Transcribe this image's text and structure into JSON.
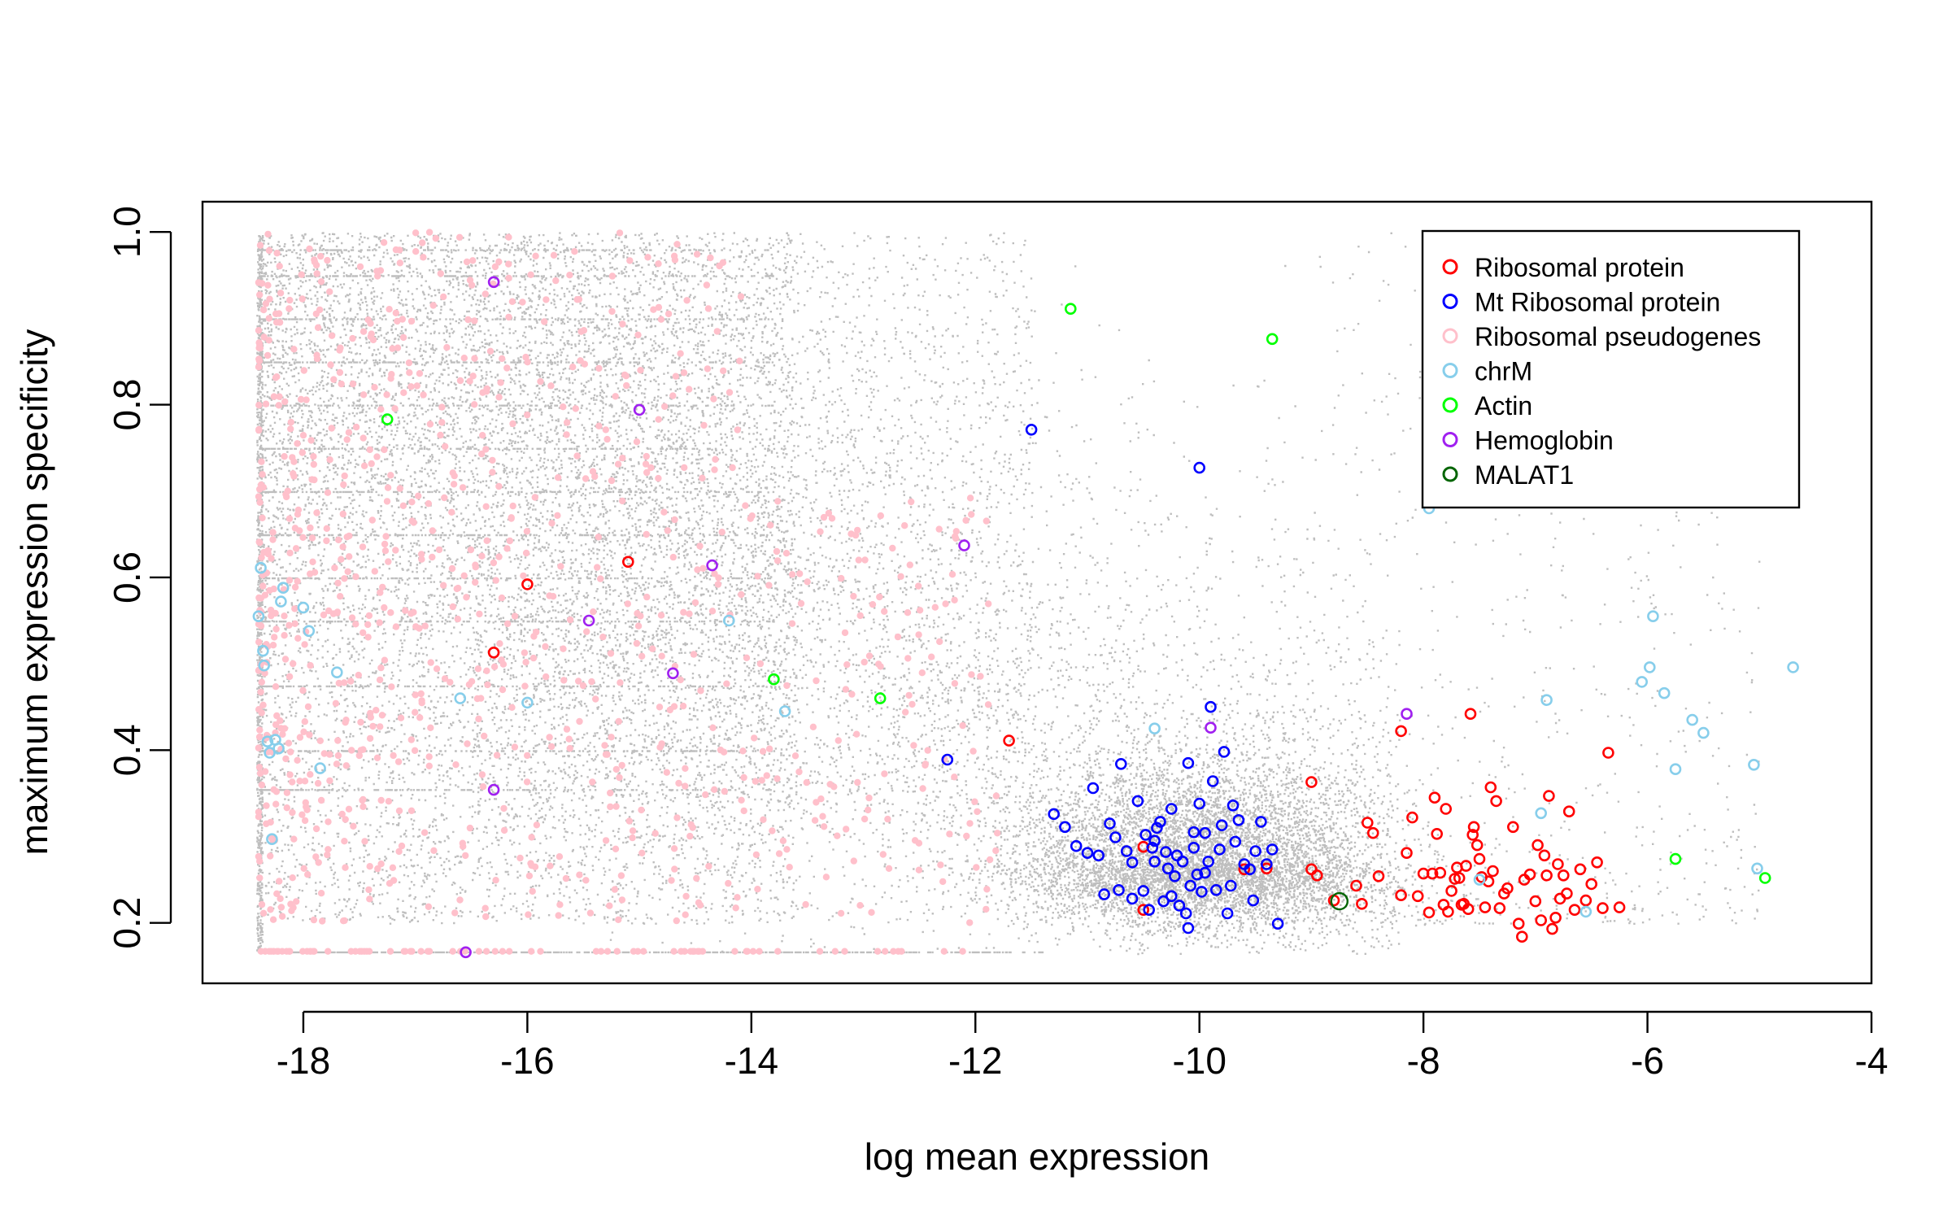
{
  "chart_data": {
    "type": "scatter",
    "title": "",
    "xlabel": "log mean expression",
    "ylabel": "maximum expression specificity",
    "xlim": [
      -18.9,
      -4.0
    ],
    "ylim": [
      0.13,
      1.035
    ],
    "xticks": [
      -18,
      -16,
      -14,
      -12,
      -10,
      -8,
      -6,
      -4
    ],
    "xtick_labels": [
      "-18",
      "-16",
      "-14",
      "-12",
      "-10",
      "-8",
      "-6",
      "-4"
    ],
    "yticks": [
      0.2,
      0.4,
      0.6,
      0.8,
      1.0
    ],
    "ytick_labels": [
      "0.2",
      "0.4",
      "0.6",
      "0.8",
      "1.0"
    ],
    "legend_position": "top-right",
    "background_series": {
      "name": "All genes",
      "color": "#bebebe",
      "note": "approx. 20000 genes, dense cloud; floor at 0.167, heavy band near x=-18.4"
    },
    "series": [
      {
        "name": "Ribosomal protein",
        "color": "#ff0000",
        "points": [
          [
            -16.3,
            0.513
          ],
          [
            -16.0,
            0.592
          ],
          [
            -15.1,
            0.618
          ],
          [
            -11.7,
            0.411
          ],
          [
            -10.5,
            0.288
          ],
          [
            -10.5,
            0.215
          ],
          [
            -9.6,
            0.262
          ],
          [
            -9.4,
            0.263
          ],
          [
            -9.0,
            0.363
          ],
          [
            -9.0,
            0.262
          ],
          [
            -8.95,
            0.255
          ],
          [
            -8.8,
            0.226
          ],
          [
            -8.6,
            0.243
          ],
          [
            -8.55,
            0.222
          ],
          [
            -8.5,
            0.316
          ],
          [
            -8.45,
            0.304
          ],
          [
            -8.4,
            0.254
          ],
          [
            -8.2,
            0.232
          ],
          [
            -8.2,
            0.422
          ],
          [
            -8.15,
            0.281
          ],
          [
            -8.1,
            0.322
          ],
          [
            -8.05,
            0.231
          ],
          [
            -8.0,
            0.257
          ],
          [
            -7.95,
            0.212
          ],
          [
            -7.92,
            0.257
          ],
          [
            -7.9,
            0.345
          ],
          [
            -7.88,
            0.303
          ],
          [
            -7.85,
            0.258
          ],
          [
            -7.82,
            0.221
          ],
          [
            -7.8,
            0.332
          ],
          [
            -7.78,
            0.213
          ],
          [
            -7.75,
            0.237
          ],
          [
            -7.72,
            0.251
          ],
          [
            -7.7,
            0.264
          ],
          [
            -7.68,
            0.252
          ],
          [
            -7.66,
            0.221
          ],
          [
            -7.64,
            0.222
          ],
          [
            -7.62,
            0.266
          ],
          [
            -7.6,
            0.216
          ],
          [
            -7.58,
            0.442
          ],
          [
            -7.56,
            0.302
          ],
          [
            -7.55,
            0.311
          ],
          [
            -7.52,
            0.29
          ],
          [
            -7.5,
            0.274
          ],
          [
            -7.48,
            0.253
          ],
          [
            -7.45,
            0.218
          ],
          [
            -7.42,
            0.248
          ],
          [
            -7.4,
            0.357
          ],
          [
            -7.38,
            0.26
          ],
          [
            -7.35,
            0.341
          ],
          [
            -7.32,
            0.217
          ],
          [
            -7.28,
            0.234
          ],
          [
            -7.25,
            0.24
          ],
          [
            -7.2,
            0.311
          ],
          [
            -7.15,
            0.199
          ],
          [
            -7.12,
            0.184
          ],
          [
            -7.1,
            0.25
          ],
          [
            -7.05,
            0.256
          ],
          [
            -7.0,
            0.225
          ],
          [
            -6.98,
            0.29
          ],
          [
            -6.95,
            0.203
          ],
          [
            -6.92,
            0.278
          ],
          [
            -6.9,
            0.255
          ],
          [
            -6.88,
            0.347
          ],
          [
            -6.85,
            0.193
          ],
          [
            -6.82,
            0.206
          ],
          [
            -6.8,
            0.268
          ],
          [
            -6.78,
            0.228
          ],
          [
            -6.75,
            0.255
          ],
          [
            -6.72,
            0.234
          ],
          [
            -6.7,
            0.329
          ],
          [
            -6.65,
            0.215
          ],
          [
            -6.6,
            0.262
          ],
          [
            -6.55,
            0.226
          ],
          [
            -6.5,
            0.245
          ],
          [
            -6.45,
            0.27
          ],
          [
            -6.4,
            0.217
          ],
          [
            -6.35,
            0.397
          ],
          [
            -6.25,
            0.218
          ]
        ]
      },
      {
        "name": "Mt Ribosomal protein",
        "color": "#0000ff",
        "points": [
          [
            -12.25,
            0.389
          ],
          [
            -11.5,
            0.771
          ],
          [
            -11.3,
            0.326
          ],
          [
            -11.2,
            0.311
          ],
          [
            -11.1,
            0.289
          ],
          [
            -11.0,
            0.281
          ],
          [
            -10.95,
            0.356
          ],
          [
            -10.9,
            0.278
          ],
          [
            -10.85,
            0.233
          ],
          [
            -10.8,
            0.315
          ],
          [
            -10.75,
            0.299
          ],
          [
            -10.72,
            0.238
          ],
          [
            -10.7,
            0.384
          ],
          [
            -10.65,
            0.283
          ],
          [
            -10.6,
            0.228
          ],
          [
            -10.55,
            0.341
          ],
          [
            -10.5,
            0.237
          ],
          [
            -10.48,
            0.302
          ],
          [
            -10.45,
            0.215
          ],
          [
            -10.42,
            0.287
          ],
          [
            -10.4,
            0.271
          ],
          [
            -10.38,
            0.31
          ],
          [
            -10.35,
            0.317
          ],
          [
            -10.32,
            0.225
          ],
          [
            -10.3,
            0.282
          ],
          [
            -10.28,
            0.263
          ],
          [
            -10.25,
            0.332
          ],
          [
            -10.22,
            0.254
          ],
          [
            -10.2,
            0.278
          ],
          [
            -10.18,
            0.22
          ],
          [
            -10.15,
            0.271
          ],
          [
            -10.12,
            0.211
          ],
          [
            -10.1,
            0.385
          ],
          [
            -10.08,
            0.243
          ],
          [
            -10.05,
            0.287
          ],
          [
            -10.02,
            0.256
          ],
          [
            -10.0,
            0.338
          ],
          [
            -10.0,
            0.727
          ],
          [
            -9.98,
            0.236
          ],
          [
            -9.95,
            0.304
          ],
          [
            -9.92,
            0.271
          ],
          [
            -9.9,
            0.45
          ],
          [
            -9.88,
            0.364
          ],
          [
            -9.85,
            0.238
          ],
          [
            -9.82,
            0.285
          ],
          [
            -9.8,
            0.313
          ],
          [
            -9.78,
            0.398
          ],
          [
            -9.75,
            0.211
          ],
          [
            -9.72,
            0.243
          ],
          [
            -9.7,
            0.336
          ],
          [
            -9.68,
            0.294
          ],
          [
            -9.65,
            0.319
          ],
          [
            -9.6,
            0.268
          ],
          [
            -9.55,
            0.262
          ],
          [
            -9.52,
            0.226
          ],
          [
            -9.5,
            0.283
          ],
          [
            -9.45,
            0.317
          ],
          [
            -9.4,
            0.268
          ],
          [
            -9.35,
            0.285
          ],
          [
            -9.3,
            0.199
          ],
          [
            -10.1,
            0.194
          ],
          [
            -10.4,
            0.295
          ],
          [
            -10.6,
            0.27
          ],
          [
            -10.25,
            0.231
          ],
          [
            -9.95,
            0.258
          ],
          [
            -10.05,
            0.305
          ]
        ]
      },
      {
        "name": "Ribosomal pseudogenes",
        "color": "#ffc0cb",
        "note": "approx. 1000 points spread over x=-18.4 to -12, mostly y=0.2-1.0"
      },
      {
        "name": "chrM",
        "color": "#87ceeb",
        "points": [
          [
            -18.4,
            0.555
          ],
          [
            -18.38,
            0.611
          ],
          [
            -18.36,
            0.515
          ],
          [
            -18.35,
            0.498
          ],
          [
            -18.32,
            0.41
          ],
          [
            -18.3,
            0.397
          ],
          [
            -18.28,
            0.297
          ],
          [
            -18.25,
            0.412
          ],
          [
            -18.22,
            0.402
          ],
          [
            -18.2,
            0.572
          ],
          [
            -18.18,
            0.588
          ],
          [
            -18.0,
            0.565
          ],
          [
            -17.95,
            0.538
          ],
          [
            -17.85,
            0.379
          ],
          [
            -17.7,
            0.49
          ],
          [
            -16.6,
            0.46
          ],
          [
            -16.0,
            0.455
          ],
          [
            -14.2,
            0.55
          ],
          [
            -13.7,
            0.445
          ],
          [
            -10.4,
            0.425
          ],
          [
            -7.95,
            0.68
          ],
          [
            -7.5,
            0.25
          ],
          [
            -6.95,
            0.327
          ],
          [
            -6.9,
            0.458
          ],
          [
            -6.55,
            0.213
          ],
          [
            -6.05,
            0.479
          ],
          [
            -5.98,
            0.496
          ],
          [
            -5.95,
            0.555
          ],
          [
            -5.85,
            0.466
          ],
          [
            -5.75,
            0.378
          ],
          [
            -5.6,
            0.435
          ],
          [
            -5.5,
            0.42
          ],
          [
            -5.05,
            0.383
          ],
          [
            -5.02,
            0.263
          ],
          [
            -4.7,
            0.496
          ]
        ]
      },
      {
        "name": "Actin",
        "color": "#00ff00",
        "points": [
          [
            -17.25,
            0.783
          ],
          [
            -13.8,
            0.482
          ],
          [
            -12.85,
            0.46
          ],
          [
            -11.15,
            0.911
          ],
          [
            -9.35,
            0.876
          ],
          [
            -5.75,
            0.274
          ],
          [
            -4.95,
            0.252
          ]
        ]
      },
      {
        "name": "Hemoglobin",
        "color": "#a020f0",
        "points": [
          [
            -16.3,
            0.942
          ],
          [
            -16.3,
            0.354
          ],
          [
            -16.55,
            0.166
          ],
          [
            -15.45,
            0.55
          ],
          [
            -15.0,
            0.794
          ],
          [
            -14.7,
            0.489
          ],
          [
            -14.35,
            0.614
          ],
          [
            -12.1,
            0.637
          ],
          [
            -9.9,
            0.426
          ],
          [
            -8.15,
            0.442
          ]
        ]
      },
      {
        "name": "MALAT1",
        "color": "#006400",
        "points": [
          [
            -8.75,
            0.225
          ]
        ]
      }
    ]
  }
}
